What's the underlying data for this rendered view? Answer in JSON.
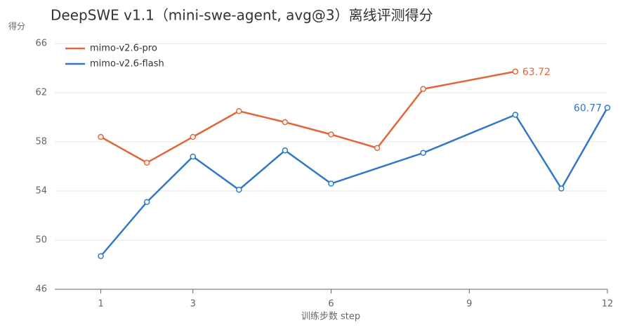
{
  "chart_data": {
    "type": "line",
    "title": "DeepSWE v1.1（mini-swe-agent, avg@3）离线评测得分",
    "y_label": "得分",
    "x_label": "训练步数 step",
    "xlim": [
      0,
      12
    ],
    "xticks": [
      1,
      3,
      6,
      9,
      12
    ],
    "ylim": [
      46,
      66
    ],
    "yticks": [
      46,
      50,
      54,
      58,
      62,
      66
    ],
    "grid": true,
    "legend": "top-left",
    "series": [
      {
        "name": "mimo-v2.6-pro",
        "color": "#e0673a",
        "x": [
          1,
          2,
          3,
          4,
          5,
          6,
          7,
          8,
          10
        ],
        "values": [
          58.4,
          56.3,
          58.4,
          60.5,
          59.6,
          58.6,
          57.5,
          62.3,
          63.72
        ]
      },
      {
        "name": "mimo-v2.6-flash",
        "color": "#2f78c8",
        "x": [
          1,
          2,
          3,
          4,
          5,
          6,
          8,
          10,
          11,
          12
        ],
        "values": [
          48.7,
          53.1,
          56.8,
          54.1,
          57.3,
          54.6,
          57.1,
          60.2,
          54.2,
          60.77
        ]
      }
    ]
  }
}
